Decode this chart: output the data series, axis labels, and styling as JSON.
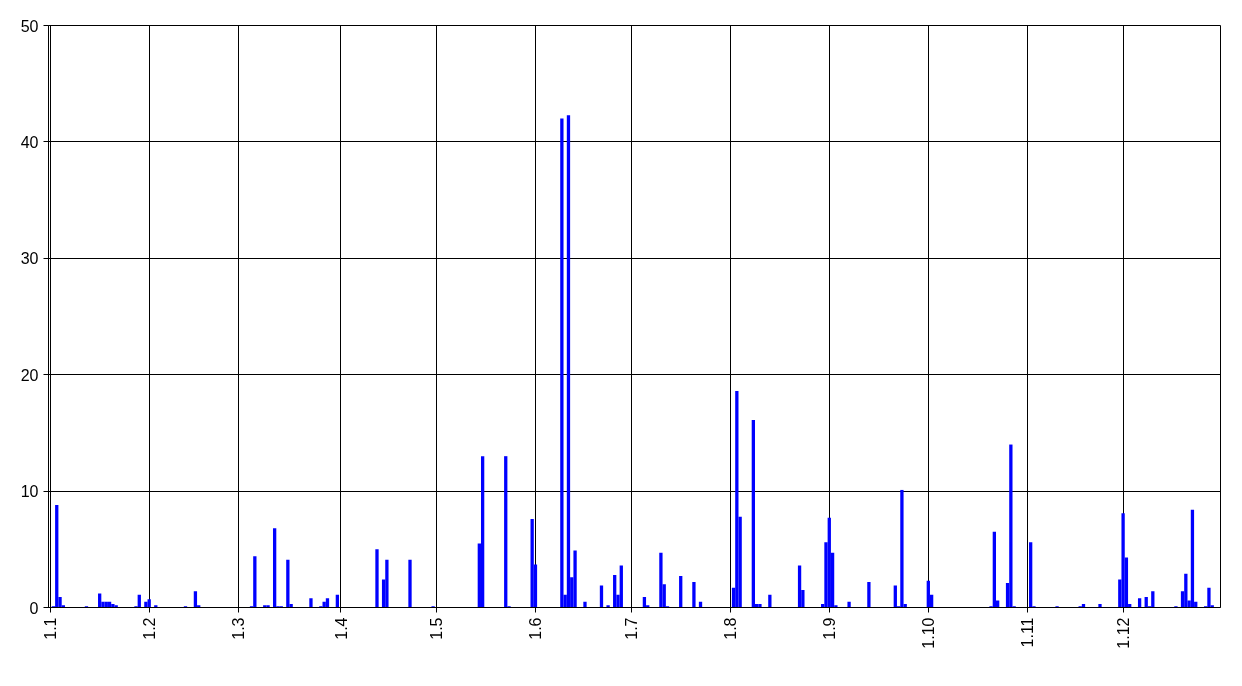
{
  "chart_data": {
    "type": "bar",
    "color": "#0000ff",
    "categories": [
      "1.1",
      null,
      null,
      null,
      null,
      null,
      null,
      null,
      null,
      null,
      null,
      null,
      null,
      null,
      null,
      null,
      null,
      null,
      null,
      null,
      null,
      null,
      null,
      null,
      null,
      null,
      null,
      null,
      null,
      null,
      "1.2",
      null,
      null,
      null,
      null,
      null,
      null,
      null,
      null,
      null,
      null,
      null,
      null,
      null,
      null,
      null,
      null,
      null,
      null,
      null,
      null,
      null,
      null,
      null,
      null,
      null,
      null,
      "1.3",
      null,
      null,
      null,
      null,
      null,
      null,
      null,
      null,
      null,
      null,
      null,
      null,
      null,
      null,
      null,
      null,
      null,
      null,
      null,
      null,
      null,
      null,
      null,
      null,
      null,
      null,
      null,
      null,
      null,
      null,
      "1.4",
      null,
      null,
      null,
      null,
      null,
      null,
      null,
      null,
      null,
      null,
      null,
      null,
      null,
      null,
      null,
      null,
      null,
      null,
      null,
      null,
      null,
      null,
      null,
      null,
      null,
      null,
      null,
      null,
      "1.5",
      null,
      null,
      null,
      null,
      null,
      null,
      null,
      null,
      null,
      null,
      null,
      null,
      null,
      null,
      null,
      null,
      null,
      null,
      null,
      null,
      null,
      null,
      null,
      null,
      null,
      null,
      null,
      null,
      null,
      "1.6",
      null,
      null,
      null,
      null,
      null,
      null,
      null,
      null,
      null,
      null,
      null,
      null,
      null,
      null,
      null,
      null,
      null,
      null,
      null,
      null,
      null,
      null,
      null,
      null,
      null,
      null,
      null,
      null,
      "1.7",
      null,
      null,
      null,
      null,
      null,
      null,
      null,
      null,
      null,
      null,
      null,
      null,
      null,
      null,
      null,
      null,
      null,
      null,
      null,
      null,
      null,
      null,
      null,
      null,
      null,
      null,
      null,
      null,
      null,
      "1.8",
      null,
      null,
      null,
      null,
      null,
      null,
      null,
      null,
      null,
      null,
      null,
      null,
      null,
      null,
      null,
      null,
      null,
      null,
      null,
      null,
      null,
      null,
      null,
      null,
      null,
      null,
      null,
      null,
      null,
      "1.9",
      null,
      null,
      null,
      null,
      null,
      null,
      null,
      null,
      null,
      null,
      null,
      null,
      null,
      null,
      null,
      null,
      null,
      null,
      null,
      null,
      null,
      null,
      null,
      null,
      null,
      null,
      null,
      null,
      null,
      "1.10",
      null,
      null,
      null,
      null,
      null,
      null,
      null,
      null,
      null,
      null,
      null,
      null,
      null,
      null,
      null,
      null,
      null,
      null,
      null,
      null,
      null,
      null,
      null,
      null,
      null,
      null,
      null,
      null,
      null,
      "1.11",
      null,
      null,
      null,
      null,
      null,
      null,
      null,
      null,
      null,
      null,
      null,
      null,
      null,
      null,
      null,
      null,
      null,
      null,
      null,
      null,
      null,
      null,
      null,
      null,
      null,
      null,
      null,
      null,
      "1.12",
      null,
      null,
      null,
      null,
      null,
      null,
      null,
      null,
      null,
      null,
      null,
      null,
      null,
      null,
      null,
      null,
      null,
      null,
      null,
      null,
      null,
      null,
      null,
      null,
      null,
      null,
      null,
      null,
      null
    ],
    "values": [
      0,
      0.1,
      8.8,
      0.9,
      0.2,
      0,
      0,
      0,
      0,
      0,
      0,
      0.1,
      0,
      0,
      0,
      1.2,
      0.5,
      0.5,
      0.5,
      0.3,
      0.2,
      0,
      0,
      0,
      0,
      0,
      0.1,
      1.1,
      0,
      0.5,
      0.7,
      0,
      0.2,
      0,
      0,
      0,
      0,
      0,
      0,
      0,
      0,
      0.1,
      0,
      0,
      1.4,
      0.2,
      0,
      0,
      0,
      0,
      0,
      0,
      0,
      0,
      0,
      0,
      0,
      0,
      0,
      0,
      0,
      0.1,
      4.4,
      0,
      0,
      0.2,
      0.2,
      0,
      6.8,
      0.1,
      0.1,
      0,
      4.1,
      0.3,
      0,
      0,
      0,
      0,
      0,
      0.8,
      0,
      0,
      0.1,
      0.5,
      0.8,
      0,
      0,
      1.1,
      0,
      0,
      0,
      0,
      0,
      0,
      0,
      0,
      0,
      0,
      0,
      5.0,
      0,
      2.4,
      4.1,
      0,
      0,
      0,
      0,
      0,
      0,
      4.1,
      0,
      0,
      0,
      0,
      0,
      0,
      0.1,
      0,
      0,
      0,
      0,
      0,
      0,
      0,
      0,
      0,
      0,
      0,
      0,
      0,
      5.5,
      13.0,
      0,
      0,
      0,
      0,
      0,
      0,
      13.0,
      0.1,
      0,
      0,
      0,
      0,
      0,
      0,
      7.6,
      3.7,
      0,
      0,
      0,
      0,
      0,
      0,
      0,
      42.0,
      1.1,
      42.3,
      2.6,
      4.9,
      0,
      0,
      0.5,
      0,
      0,
      0,
      0,
      1.9,
      0,
      0.2,
      0,
      2.8,
      1.1,
      3.6,
      0,
      0,
      0,
      0,
      0,
      0,
      0.9,
      0.2,
      0,
      0,
      0,
      4.7,
      2.0,
      0.1,
      0,
      0,
      0,
      2.7,
      0,
      0,
      0,
      2.2,
      0,
      0.5,
      0,
      0,
      0,
      0,
      0,
      0,
      0,
      0,
      0,
      1.7,
      18.6,
      7.8,
      0,
      0,
      0,
      16.1,
      0.3,
      0.3,
      0,
      0,
      1.1,
      0,
      0,
      0,
      0,
      0,
      0,
      0,
      0,
      3.6,
      1.5,
      0,
      0,
      0,
      0,
      0,
      0.3,
      5.6,
      7.7,
      4.7,
      0.2,
      0,
      0,
      0,
      0.5,
      0,
      0,
      0,
      0,
      0,
      2.2,
      0,
      0,
      0,
      0,
      0,
      0,
      0,
      1.9,
      0.1,
      10.1,
      0.3,
      0,
      0,
      0,
      0,
      0,
      0,
      2.3,
      1.1,
      0,
      0,
      0,
      0,
      0,
      0,
      0,
      0,
      0,
      0,
      0,
      0,
      0,
      0,
      0,
      0,
      0,
      0.1,
      6.5,
      0.6,
      0,
      0,
      2.1,
      14.0,
      0.1,
      0,
      0,
      0,
      0,
      5.6,
      0.1,
      0,
      0,
      0,
      0,
      0,
      0,
      0.1,
      0,
      0,
      0,
      0,
      0,
      0,
      0.1,
      0.3,
      0,
      0,
      0,
      0,
      0.3,
      0,
      0,
      0,
      0,
      0,
      2.4,
      8.1,
      4.3,
      0.3,
      0,
      0,
      0.8,
      0,
      0.9,
      0.1,
      1.4,
      0,
      0,
      0,
      0,
      0,
      0,
      0.1,
      0,
      1.4,
      2.9,
      0.6,
      8.4,
      0.5,
      0,
      0,
      0.1,
      1.7,
      0.2,
      0,
      0
    ],
    "ylim": [
      0,
      50
    ],
    "yticks": [
      0,
      10,
      20,
      30,
      40,
      50
    ],
    "grid": true
  }
}
